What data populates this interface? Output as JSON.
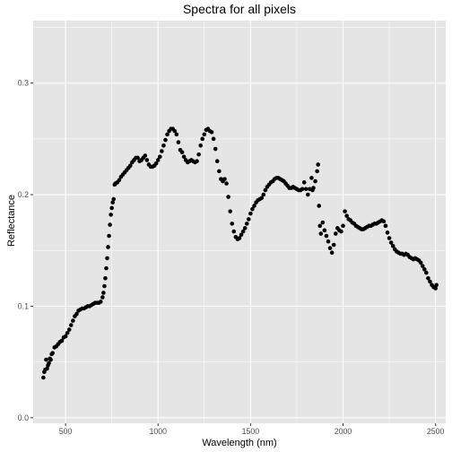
{
  "chart_data": {
    "type": "scatter",
    "title": "Spectra for all pixels",
    "xlabel": "Wavelength (nm)",
    "ylabel": "Reflectance",
    "xlim": [
      325,
      2555
    ],
    "ylim": [
      -0.005,
      0.356
    ],
    "x_ticks": [
      500,
      1000,
      1500,
      2000,
      2500
    ],
    "x_tick_labels": [
      "500",
      "1000",
      "1500",
      "2000",
      "2500"
    ],
    "y_ticks": [
      0.0,
      0.1,
      0.2,
      0.3
    ],
    "y_tick_labels": [
      "0.0",
      "0.1",
      "0.2",
      "0.3"
    ],
    "grid": true,
    "legend": "none",
    "colors": {
      "panel": "#e5e5e5",
      "grid": "#ffffff",
      "point": "#000000"
    },
    "series": [
      {
        "points": [
          [
            380,
            0.036
          ],
          [
            385,
            0.041
          ],
          [
            390,
            0.043
          ],
          [
            395,
            0.052
          ],
          [
            400,
            0.044
          ],
          [
            405,
            0.047
          ],
          [
            410,
            0.049
          ],
          [
            415,
            0.053
          ],
          [
            420,
            0.052
          ],
          [
            425,
            0.057
          ],
          [
            430,
            0.058
          ],
          [
            440,
            0.063
          ],
          [
            450,
            0.064
          ],
          [
            460,
            0.066
          ],
          [
            470,
            0.068
          ],
          [
            480,
            0.069
          ],
          [
            490,
            0.072
          ],
          [
            500,
            0.073
          ],
          [
            510,
            0.076
          ],
          [
            520,
            0.079
          ],
          [
            530,
            0.083
          ],
          [
            540,
            0.087
          ],
          [
            550,
            0.091
          ],
          [
            560,
            0.093
          ],
          [
            570,
            0.096
          ],
          [
            580,
            0.097
          ],
          [
            590,
            0.098
          ],
          [
            600,
            0.098
          ],
          [
            610,
            0.099
          ],
          [
            620,
            0.1
          ],
          [
            630,
            0.1
          ],
          [
            640,
            0.101
          ],
          [
            650,
            0.102
          ],
          [
            660,
            0.103
          ],
          [
            670,
            0.103
          ],
          [
            680,
            0.103
          ],
          [
            690,
            0.104
          ],
          [
            700,
            0.108
          ],
          [
            705,
            0.112
          ],
          [
            710,
            0.118
          ],
          [
            715,
            0.125
          ],
          [
            720,
            0.134
          ],
          [
            725,
            0.143
          ],
          [
            730,
            0.153
          ],
          [
            735,
            0.163
          ],
          [
            740,
            0.173
          ],
          [
            745,
            0.182
          ],
          [
            750,
            0.188
          ],
          [
            755,
            0.193
          ],
          [
            760,
            0.196
          ],
          [
            765,
            0.209
          ],
          [
            770,
            0.21
          ],
          [
            780,
            0.211
          ],
          [
            790,
            0.213
          ],
          [
            800,
            0.216
          ],
          [
            810,
            0.218
          ],
          [
            820,
            0.22
          ],
          [
            830,
            0.222
          ],
          [
            840,
            0.224
          ],
          [
            850,
            0.226
          ],
          [
            860,
            0.229
          ],
          [
            870,
            0.231
          ],
          [
            880,
            0.233
          ],
          [
            890,
            0.233
          ],
          [
            900,
            0.23
          ],
          [
            910,
            0.231
          ],
          [
            920,
            0.233
          ],
          [
            930,
            0.235
          ],
          [
            940,
            0.231
          ],
          [
            950,
            0.227
          ],
          [
            960,
            0.225
          ],
          [
            970,
            0.225
          ],
          [
            980,
            0.226
          ],
          [
            990,
            0.228
          ],
          [
            1000,
            0.231
          ],
          [
            1010,
            0.234
          ],
          [
            1020,
            0.239
          ],
          [
            1030,
            0.244
          ],
          [
            1040,
            0.249
          ],
          [
            1050,
            0.254
          ],
          [
            1060,
            0.257
          ],
          [
            1070,
            0.259
          ],
          [
            1080,
            0.259
          ],
          [
            1090,
            0.257
          ],
          [
            1100,
            0.254
          ],
          [
            1110,
            0.247
          ],
          [
            1120,
            0.24
          ],
          [
            1130,
            0.238
          ],
          [
            1140,
            0.234
          ],
          [
            1150,
            0.231
          ],
          [
            1160,
            0.229
          ],
          [
            1170,
            0.23
          ],
          [
            1180,
            0.231
          ],
          [
            1190,
            0.23
          ],
          [
            1200,
            0.229
          ],
          [
            1210,
            0.23
          ],
          [
            1220,
            0.236
          ],
          [
            1230,
            0.244
          ],
          [
            1240,
            0.25
          ],
          [
            1250,
            0.254
          ],
          [
            1260,
            0.258
          ],
          [
            1270,
            0.259
          ],
          [
            1280,
            0.257
          ],
          [
            1290,
            0.256
          ],
          [
            1300,
            0.25
          ],
          [
            1310,
            0.241
          ],
          [
            1320,
            0.23
          ],
          [
            1330,
            0.221
          ],
          [
            1340,
            0.214
          ],
          [
            1350,
            0.212
          ],
          [
            1360,
            0.214
          ],
          [
            1370,
            0.21
          ],
          [
            1380,
            0.198
          ],
          [
            1390,
            0.185
          ],
          [
            1400,
            0.174
          ],
          [
            1410,
            0.167
          ],
          [
            1420,
            0.162
          ],
          [
            1430,
            0.16
          ],
          [
            1440,
            0.161
          ],
          [
            1450,
            0.164
          ],
          [
            1460,
            0.167
          ],
          [
            1470,
            0.17
          ],
          [
            1480,
            0.174
          ],
          [
            1490,
            0.178
          ],
          [
            1500,
            0.183
          ],
          [
            1510,
            0.187
          ],
          [
            1520,
            0.19
          ],
          [
            1530,
            0.193
          ],
          [
            1540,
            0.195
          ],
          [
            1550,
            0.196
          ],
          [
            1560,
            0.197
          ],
          [
            1570,
            0.2
          ],
          [
            1580,
            0.204
          ],
          [
            1590,
            0.207
          ],
          [
            1600,
            0.209
          ],
          [
            1610,
            0.211
          ],
          [
            1620,
            0.212
          ],
          [
            1630,
            0.214
          ],
          [
            1640,
            0.215
          ],
          [
            1650,
            0.215
          ],
          [
            1660,
            0.214
          ],
          [
            1670,
            0.213
          ],
          [
            1680,
            0.212
          ],
          [
            1690,
            0.21
          ],
          [
            1700,
            0.208
          ],
          [
            1710,
            0.206
          ],
          [
            1720,
            0.206
          ],
          [
            1730,
            0.207
          ],
          [
            1740,
            0.206
          ],
          [
            1750,
            0.205
          ],
          [
            1760,
            0.204
          ],
          [
            1770,
            0.204
          ],
          [
            1780,
            0.205
          ],
          [
            1790,
            0.211
          ],
          [
            1800,
            0.205
          ],
          [
            1810,
            0.2
          ],
          [
            1820,
            0.205
          ],
          [
            1830,
            0.215
          ],
          [
            1835,
            0.204
          ],
          [
            1840,
            0.206
          ],
          [
            1850,
            0.212
          ],
          [
            1860,
            0.221
          ],
          [
            1865,
            0.227
          ],
          [
            1870,
            0.19
          ],
          [
            1875,
            0.172
          ],
          [
            1880,
            0.165
          ],
          [
            1890,
            0.175
          ],
          [
            1900,
            0.168
          ],
          [
            1910,
            0.163
          ],
          [
            1920,
            0.158
          ],
          [
            1930,
            0.152
          ],
          [
            1940,
            0.148
          ],
          [
            1950,
            0.155
          ],
          [
            1960,
            0.165
          ],
          [
            1970,
            0.17
          ],
          [
            1980,
            0.168
          ],
          [
            1990,
            0.167
          ],
          [
            2000,
            0.172
          ],
          [
            2010,
            0.185
          ],
          [
            2020,
            0.181
          ],
          [
            2030,
            0.178
          ],
          [
            2040,
            0.177
          ],
          [
            2050,
            0.175
          ],
          [
            2060,
            0.174
          ],
          [
            2070,
            0.172
          ],
          [
            2080,
            0.171
          ],
          [
            2090,
            0.17
          ],
          [
            2100,
            0.169
          ],
          [
            2110,
            0.169
          ],
          [
            2120,
            0.17
          ],
          [
            2130,
            0.171
          ],
          [
            2140,
            0.172
          ],
          [
            2150,
            0.172
          ],
          [
            2160,
            0.173
          ],
          [
            2170,
            0.174
          ],
          [
            2180,
            0.174
          ],
          [
            2190,
            0.175
          ],
          [
            2200,
            0.176
          ],
          [
            2210,
            0.177
          ],
          [
            2220,
            0.176
          ],
          [
            2230,
            0.172
          ],
          [
            2240,
            0.166
          ],
          [
            2250,
            0.161
          ],
          [
            2260,
            0.157
          ],
          [
            2270,
            0.154
          ],
          [
            2280,
            0.151
          ],
          [
            2290,
            0.149
          ],
          [
            2300,
            0.148
          ],
          [
            2310,
            0.147
          ],
          [
            2320,
            0.147
          ],
          [
            2330,
            0.146
          ],
          [
            2340,
            0.147
          ],
          [
            2350,
            0.146
          ],
          [
            2360,
            0.144
          ],
          [
            2370,
            0.143
          ],
          [
            2380,
            0.142
          ],
          [
            2390,
            0.143
          ],
          [
            2400,
            0.142
          ],
          [
            2410,
            0.141
          ],
          [
            2420,
            0.139
          ],
          [
            2430,
            0.136
          ],
          [
            2440,
            0.133
          ],
          [
            2450,
            0.13
          ],
          [
            2460,
            0.125
          ],
          [
            2470,
            0.122
          ],
          [
            2480,
            0.119
          ],
          [
            2490,
            0.117
          ],
          [
            2500,
            0.116
          ],
          [
            2505,
            0.119
          ]
        ]
      }
    ]
  }
}
